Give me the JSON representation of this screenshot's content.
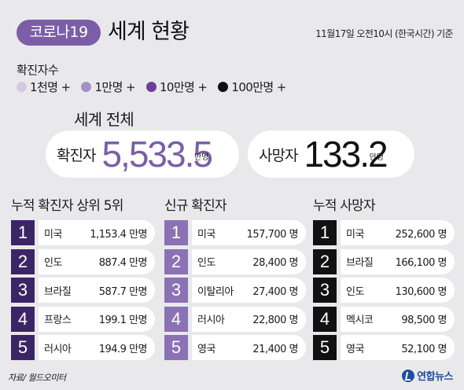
{
  "header": {
    "badge": "코로나19",
    "title": "세계 현황",
    "date": "11월17일 오전10시 (한국시간) 기준"
  },
  "legend": {
    "title": "확진자수",
    "items": [
      {
        "label": "1천명 +",
        "color": "#d3c9e2"
      },
      {
        "label": "1만명 +",
        "color": "#a590c6"
      },
      {
        "label": "10만명 +",
        "color": "#6c3f98"
      },
      {
        "label": "100만명 +",
        "color": "#111111"
      }
    ]
  },
  "world": {
    "title": "세계 전체",
    "confirmed_label": "확진자",
    "confirmed_value": "5,533.5",
    "confirmed_unit": "만명",
    "deaths_label": "사망자",
    "deaths_value": "133.2",
    "deaths_unit": "만명"
  },
  "col1": {
    "title": "누적 확진자 상위 5위",
    "rows": [
      {
        "rank": "1",
        "country": "미국",
        "value": "1,153.4 만명"
      },
      {
        "rank": "2",
        "country": "인도",
        "value": "887.4 만명"
      },
      {
        "rank": "3",
        "country": "브라질",
        "value": "587.7 만명"
      },
      {
        "rank": "4",
        "country": "프랑스",
        "value": "199.1 만명"
      },
      {
        "rank": "5",
        "country": "러시아",
        "value": "194.9 만명"
      }
    ]
  },
  "col2": {
    "title": "신규 확진자",
    "rows": [
      {
        "rank": "1",
        "country": "미국",
        "value": "157,700 명"
      },
      {
        "rank": "2",
        "country": "인도",
        "value": "28,400 명"
      },
      {
        "rank": "3",
        "country": "이탈리아",
        "value": "27,400 명"
      },
      {
        "rank": "4",
        "country": "러시아",
        "value": "22,800 명"
      },
      {
        "rank": "5",
        "country": "영국",
        "value": "21,400 명"
      }
    ]
  },
  "col3": {
    "title": "누적 사망자",
    "rows": [
      {
        "rank": "1",
        "country": "미국",
        "value": "252,600 명"
      },
      {
        "rank": "2",
        "country": "브라질",
        "value": "166,100 명"
      },
      {
        "rank": "3",
        "country": "인도",
        "value": "130,600 명"
      },
      {
        "rank": "4",
        "country": "멕시코",
        "value": "98,500 명"
      },
      {
        "rank": "5",
        "country": "영국",
        "value": "52,100 명"
      }
    ]
  },
  "footer": {
    "source": "자료/ 월드오미터",
    "logo": "연합뉴스",
    "logo_icon": "yonhap-logo-icon"
  }
}
